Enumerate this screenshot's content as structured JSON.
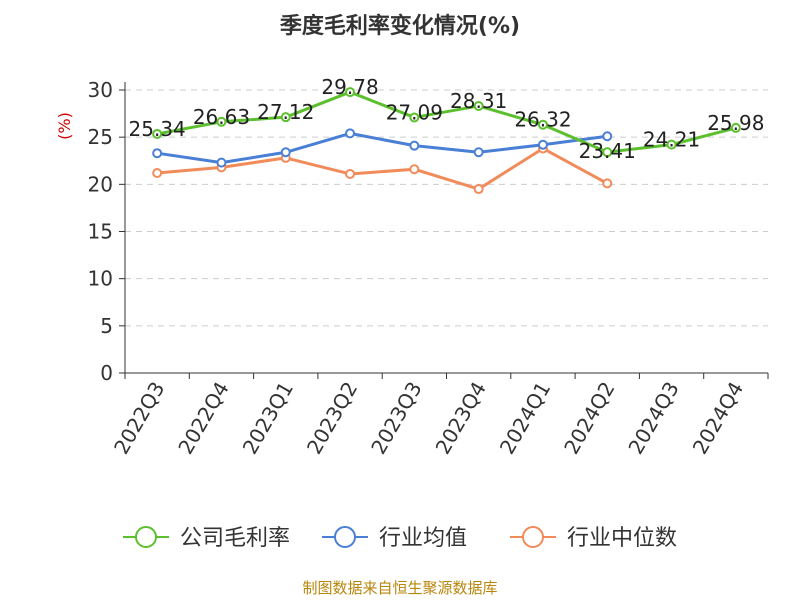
{
  "chart_data": {
    "type": "line",
    "title": "季度毛利率变化情况(%)",
    "ylabel": "(%)",
    "categories": [
      "2022Q3",
      "2022Q4",
      "2023Q1",
      "2023Q2",
      "2023Q3",
      "2023Q4",
      "2024Q1",
      "2024Q2",
      "2024Q3",
      "2024Q4"
    ],
    "ylim": [
      0,
      30
    ],
    "yticks": [
      0,
      5,
      10,
      15,
      20,
      25,
      30
    ],
    "grid": true,
    "legend_position": "bottom",
    "series": [
      {
        "name": "公司毛利率",
        "color": "#5cc02e",
        "values": [
          25.34,
          26.63,
          27.12,
          29.78,
          27.09,
          28.31,
          26.32,
          23.41,
          24.21,
          25.98
        ],
        "labels": [
          "25.34",
          "26.63",
          "27.12",
          "29.78",
          "27.09",
          "28.31",
          "26.32",
          "23.41",
          "24.21",
          "25.98"
        ]
      },
      {
        "name": "行业均值",
        "color": "#4a7fd6",
        "values": [
          23.3,
          22.3,
          23.4,
          25.4,
          24.1,
          23.4,
          24.2,
          25.1,
          null,
          null
        ]
      },
      {
        "name": "行业中位数",
        "color": "#f28b5a",
        "values": [
          21.2,
          21.8,
          22.8,
          21.1,
          21.6,
          19.5,
          23.8,
          20.1,
          null,
          null
        ]
      }
    ]
  },
  "source": "制图数据来自恒生聚源数据库"
}
